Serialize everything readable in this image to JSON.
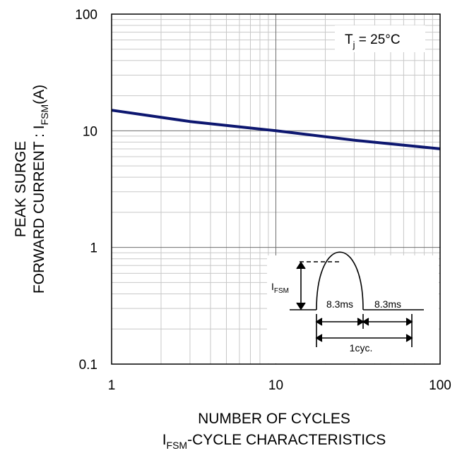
{
  "chart_data": {
    "type": "line",
    "x_scale": "log",
    "y_scale": "log",
    "xlim": [
      1,
      100
    ],
    "ylim": [
      0.1,
      100
    ],
    "x_ticks": [
      {
        "value": 1,
        "label": "1"
      },
      {
        "value": 10,
        "label": "10"
      },
      {
        "value": 100,
        "label": "100"
      }
    ],
    "y_ticks": [
      {
        "value": 0.1,
        "label": "0.1"
      },
      {
        "value": 1,
        "label": "1"
      },
      {
        "value": 10,
        "label": "10"
      },
      {
        "value": 100,
        "label": "100"
      }
    ],
    "ylabel_line1": "PEAK SURGE",
    "ylabel_line2_main": "FORWARD CURRENT : I",
    "ylabel_line2_sub": "FSM",
    "ylabel_line2_tail": "(A)",
    "xlabel": "NUMBER OF CYCLES",
    "caption_main": "I",
    "caption_sub": "FSM",
    "caption_tail": "-CYCLE CHARACTERISTICS",
    "annotation_main": "T",
    "annotation_sub": "j",
    "annotation_tail": " = 25°C",
    "grid": true,
    "series": [
      {
        "color": "#0d1770",
        "points": [
          [
            1,
            15
          ],
          [
            3,
            12
          ],
          [
            10,
            10
          ],
          [
            30,
            8.3
          ],
          [
            100,
            7
          ]
        ]
      }
    ],
    "inset": {
      "ifsm_main": "I",
      "ifsm_sub": "FSM",
      "half_cycle_label": "8.3ms",
      "second_half_label": "8.3ms",
      "cycle_label": "1cyc."
    }
  }
}
